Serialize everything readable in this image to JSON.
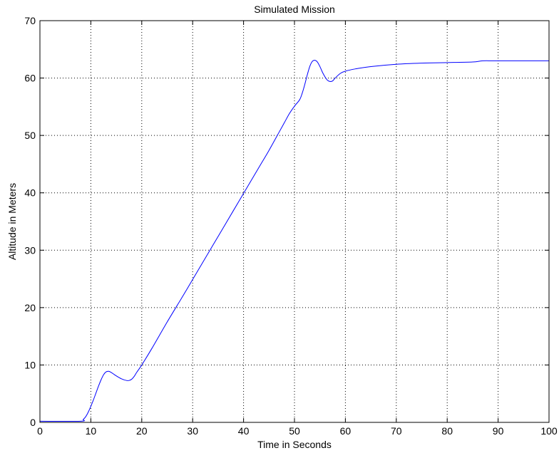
{
  "chart_data": {
    "type": "line",
    "title": "Simulated Mission",
    "xlabel": "Time in Seconds",
    "ylabel": "Altitude in Meters",
    "xlim": [
      0,
      100
    ],
    "ylim": [
      0,
      70
    ],
    "xticks": [
      0,
      10,
      20,
      30,
      40,
      50,
      60,
      70,
      80,
      90,
      100
    ],
    "yticks": [
      0,
      10,
      20,
      30,
      40,
      50,
      60,
      70
    ],
    "grid": true,
    "grid_style": "dotted",
    "line_color": "#0000ff",
    "series": [
      {
        "x": [
          0,
          8,
          8.5,
          9,
          9.5,
          10,
          10.5,
          11,
          11.5,
          12,
          12.5,
          13,
          13.5,
          14,
          14.5,
          15,
          16,
          17,
          17.5,
          18,
          18.5,
          19,
          20,
          22,
          25,
          28,
          30,
          33,
          35,
          38,
          40,
          43,
          45,
          47,
          48,
          49,
          50,
          51,
          51.5,
          52,
          52.5,
          53,
          53.5,
          54,
          54.5,
          55,
          55.5,
          56,
          56.5,
          57,
          57.5,
          58,
          59,
          60,
          62,
          65,
          70,
          75,
          80,
          85,
          87,
          90,
          100
        ],
        "y": [
          0.2,
          0.2,
          0.5,
          1.0,
          1.8,
          2.8,
          3.9,
          5.1,
          6.3,
          7.4,
          8.3,
          8.8,
          8.9,
          8.7,
          8.4,
          8.1,
          7.6,
          7.3,
          7.3,
          7.5,
          8.0,
          8.7,
          10.0,
          12.9,
          17.5,
          21.9,
          24.9,
          29.4,
          32.4,
          36.9,
          39.9,
          44.4,
          47.4,
          50.6,
          52.2,
          53.8,
          55.1,
          56.2,
          57.3,
          58.8,
          60.5,
          62.0,
          62.9,
          63.1,
          62.8,
          62.0,
          61.0,
          60.2,
          59.6,
          59.4,
          59.5,
          60.0,
          60.8,
          61.2,
          61.6,
          62.0,
          62.4,
          62.6,
          62.7,
          62.8,
          63.0,
          63.0,
          63.0
        ]
      }
    ]
  }
}
